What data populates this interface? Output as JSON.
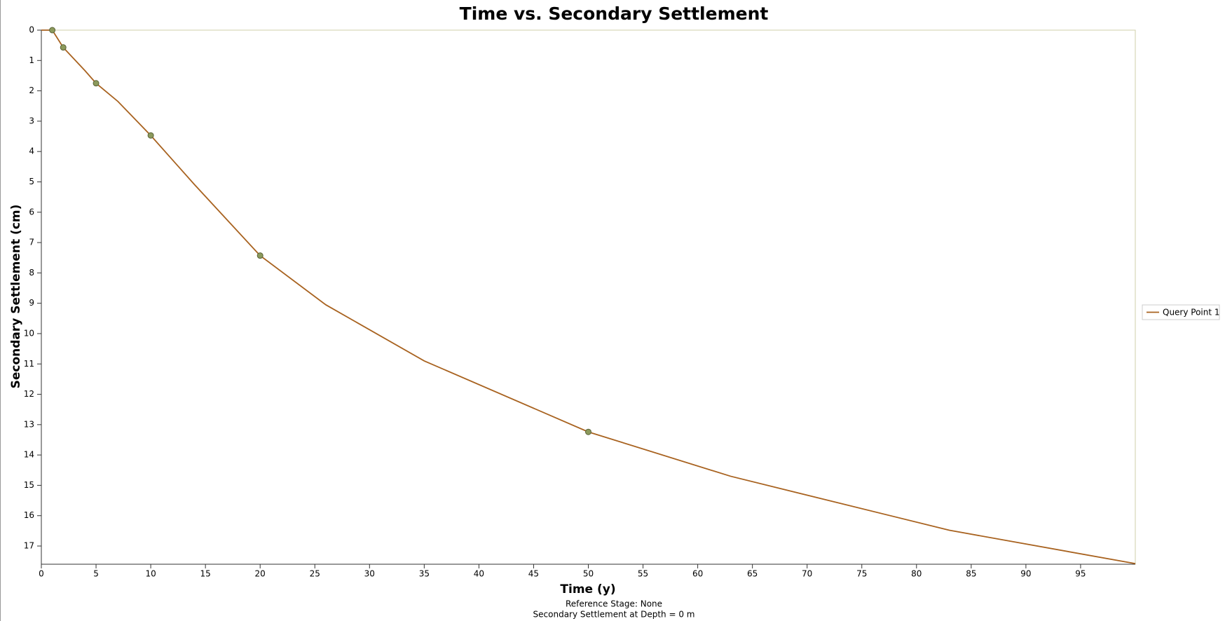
{
  "chart_data": {
    "type": "line",
    "title": "Time vs. Secondary Settlement",
    "x_label": "Time (y)",
    "y_label": "Secondary Settlement (cm)",
    "footer": [
      "Reference Stage: None",
      "Secondary Settlement at Depth = 0 m"
    ],
    "xlim": [
      0,
      100
    ],
    "ylim": [
      0,
      17.6
    ],
    "y_inverted": true,
    "xticks": [
      0,
      5,
      10,
      15,
      20,
      25,
      30,
      35,
      40,
      45,
      50,
      55,
      60,
      65,
      70,
      75,
      80,
      85,
      90,
      95
    ],
    "yticks": [
      0,
      1,
      2,
      3,
      4,
      5,
      6,
      7,
      8,
      9,
      10,
      11,
      12,
      13,
      14,
      15,
      16,
      17
    ],
    "series": [
      {
        "name": "Query Point 1",
        "color": "#a8621f",
        "marker_color": "#8c9a5c",
        "x": [
          0,
          1,
          2,
          4,
          5,
          7,
          10,
          14,
          20,
          26,
          35,
          50,
          63,
          83,
          100
        ],
        "values": [
          0,
          0,
          0.57,
          1.34,
          1.75,
          2.35,
          3.47,
          5.09,
          7.43,
          9.05,
          10.9,
          13.24,
          14.7,
          16.48,
          17.58
        ],
        "points": {
          "x": [
            1,
            2,
            5,
            10,
            20,
            50
          ],
          "values": [
            0,
            0.57,
            1.75,
            3.47,
            7.43,
            13.24
          ]
        }
      }
    ]
  }
}
